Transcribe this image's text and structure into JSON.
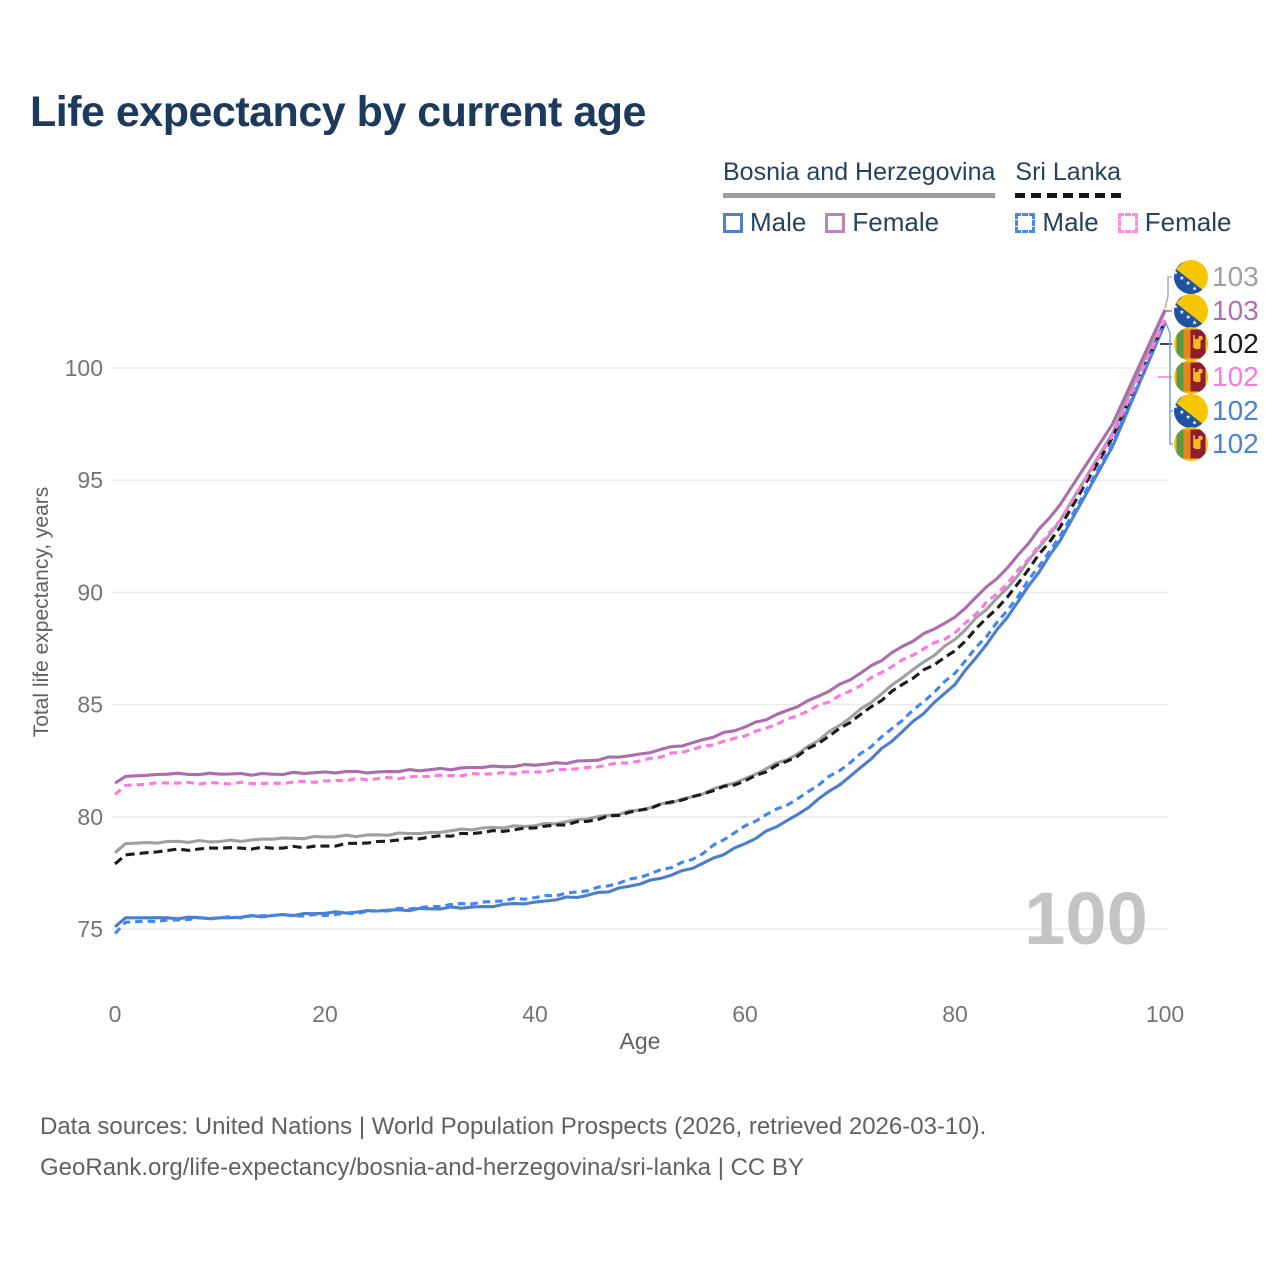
{
  "title": "Life expectancy by current age",
  "legend": {
    "groups": [
      {
        "country": "Bosnia and Herzegovina",
        "line_style": "solid",
        "underline_color": "#9e9e9e",
        "items": [
          {
            "label": "Male",
            "color": "#5181c9",
            "box_style": "solid"
          },
          {
            "label": "Female",
            "color": "#bb82bb",
            "box_style": "solid"
          }
        ]
      },
      {
        "country": "Sri Lanka",
        "line_style": "dashed",
        "underline_color": "#161616",
        "items": [
          {
            "label": "Male",
            "color": "#4687ef",
            "box_style": "dashed"
          },
          {
            "label": "Female",
            "color": "#ff8ae6",
            "box_style": "dashed"
          }
        ]
      }
    ]
  },
  "axes": {
    "y_title": "Total life expectancy, years",
    "x_title": "Age",
    "y_ticks": [
      75,
      80,
      85,
      90,
      95,
      100
    ],
    "x_ticks": [
      0,
      20,
      40,
      60,
      80,
      100
    ],
    "x_range": [
      0,
      100
    ],
    "grid": true
  },
  "chart_data": {
    "type": "line",
    "title": "Life expectancy by current age",
    "xlabel": "Age",
    "ylabel": "Total life expectancy, years",
    "xlim": [
      0,
      100
    ],
    "ylim": [
      74,
      103.5
    ],
    "x": [
      0,
      1,
      5,
      10,
      15,
      20,
      25,
      30,
      35,
      40,
      45,
      50,
      55,
      60,
      65,
      70,
      75,
      80,
      85,
      90,
      95,
      100
    ],
    "series": [
      {
        "id": "bih-female",
        "country": "Bosnia and Herzegovina",
        "group": "Female",
        "color": "#ad6cad",
        "dash": "solid",
        "values": [
          81.5,
          81.8,
          81.9,
          81.9,
          81.9,
          82.0,
          82.0,
          82.1,
          82.2,
          82.3,
          82.5,
          82.8,
          83.3,
          84.0,
          84.9,
          86.1,
          87.6,
          88.9,
          91.1,
          93.9,
          97.5,
          102.6
        ]
      },
      {
        "id": "bih-total",
        "country": "Bosnia and Herzegovina",
        "group": "Total",
        "color": "#a0a0a0",
        "dash": "solid",
        "values": [
          78.4,
          78.8,
          78.9,
          78.9,
          79.0,
          79.1,
          79.2,
          79.3,
          79.5,
          79.6,
          79.9,
          80.3,
          80.9,
          81.7,
          82.8,
          84.4,
          86.2,
          87.9,
          90.2,
          93.2,
          97.1,
          102.55
        ]
      },
      {
        "id": "bih-male",
        "country": "Bosnia and Herzegovina",
        "group": "Male",
        "color": "#4c7ecb",
        "dash": "solid",
        "values": [
          75.1,
          75.5,
          75.5,
          75.5,
          75.6,
          75.7,
          75.8,
          75.9,
          76.0,
          76.2,
          76.5,
          77.0,
          77.7,
          78.8,
          80.1,
          81.8,
          83.8,
          85.9,
          88.9,
          92.3,
          96.5,
          102.0
        ]
      },
      {
        "id": "sl-female",
        "country": "Sri Lanka",
        "group": "Female",
        "color": "#ff77e3",
        "dash": "dashed",
        "values": [
          81.0,
          81.4,
          81.5,
          81.5,
          81.5,
          81.6,
          81.7,
          81.8,
          81.9,
          82.0,
          82.2,
          82.5,
          83.0,
          83.6,
          84.5,
          85.6,
          87.0,
          88.2,
          90.4,
          93.2,
          97.0,
          102.15
        ]
      },
      {
        "id": "sl-total",
        "country": "Sri Lanka",
        "group": "Total",
        "color": "#1c1c1c",
        "dash": "dashed",
        "values": [
          77.9,
          78.3,
          78.5,
          78.6,
          78.6,
          78.7,
          78.9,
          79.1,
          79.3,
          79.5,
          79.8,
          80.3,
          80.9,
          81.6,
          82.7,
          84.2,
          85.9,
          87.4,
          89.8,
          92.9,
          96.9,
          102.1
        ]
      },
      {
        "id": "sl-male",
        "country": "Sri Lanka",
        "group": "Male",
        "color": "#4285f4",
        "dash": "dashed",
        "values": [
          74.8,
          75.3,
          75.4,
          75.5,
          75.6,
          75.6,
          75.8,
          76.0,
          76.2,
          76.4,
          76.7,
          77.3,
          78.1,
          79.6,
          80.8,
          82.4,
          84.3,
          86.4,
          89.2,
          92.5,
          96.6,
          102.05
        ]
      }
    ]
  },
  "end_labels": [
    {
      "value": "103",
      "flag": "bih",
      "color": "#a0a0a0",
      "series": "bih-total"
    },
    {
      "value": "103",
      "flag": "bih",
      "color": "#b06fb0",
      "series": "bih-female"
    },
    {
      "value": "102",
      "flag": "lka",
      "color": "#1a1a1a",
      "series": "sl-total"
    },
    {
      "value": "102",
      "flag": "lka",
      "color": "#ff77e3",
      "series": "sl-female"
    },
    {
      "value": "102",
      "flag": "bih",
      "color": "#4a80d9",
      "series": "bih-male"
    },
    {
      "value": "102",
      "flag": "lka",
      "color": "#4a80d9",
      "series": "sl-male"
    }
  ],
  "watermark": "100",
  "footer": {
    "line1": "Data sources: United Nations | World Population Prospects (2026, retrieved 2026-03-10).",
    "line2": "GeoRank.org/life-expectancy/bosnia-and-herzegovina/sri-lanka | CC BY"
  }
}
